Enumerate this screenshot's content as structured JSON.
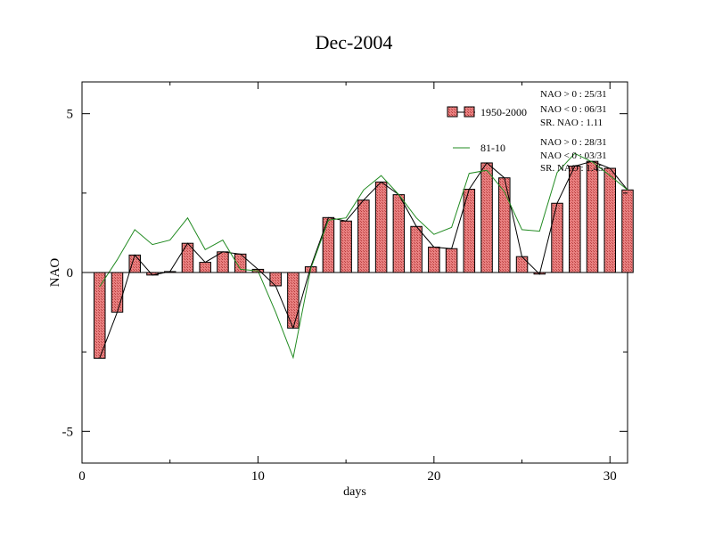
{
  "chart_data": {
    "type": "bar",
    "title": "Dec-2004",
    "xlabel": "days",
    "ylabel": "NAO",
    "xlim": [
      0,
      31
    ],
    "ylim": [
      -6,
      6
    ],
    "x_ticks": [
      0,
      10,
      20,
      30
    ],
    "x_tick_labels": [
      "0",
      "10",
      "20",
      "30"
    ],
    "y_ticks": [
      -5,
      0,
      5
    ],
    "y_tick_labels": [
      "-5",
      "0",
      "5"
    ],
    "grid": false,
    "legend_position": "top-right",
    "days": [
      1,
      2,
      3,
      4,
      5,
      6,
      7,
      8,
      9,
      10,
      11,
      12,
      13,
      14,
      15,
      16,
      17,
      18,
      19,
      20,
      21,
      22,
      23,
      24,
      25,
      26,
      27,
      28,
      29,
      30,
      31
    ],
    "series": [
      {
        "name": "1950-2000",
        "style": "bars with line",
        "color": "#e06666",
        "line_color": "#000000",
        "values": [
          -2.7,
          -1.25,
          0.55,
          -0.08,
          0.03,
          0.92,
          0.32,
          0.65,
          0.58,
          0.1,
          -0.42,
          -1.75,
          0.18,
          1.73,
          1.62,
          2.28,
          2.85,
          2.45,
          1.45,
          0.8,
          0.75,
          2.62,
          3.45,
          2.98,
          0.5,
          -0.05,
          2.18,
          3.35,
          3.5,
          3.28,
          2.6
        ]
      },
      {
        "name": "81-10",
        "style": "line",
        "color": "#228b22",
        "values": [
          -0.45,
          0.4,
          1.35,
          0.88,
          1.02,
          1.72,
          0.72,
          1.02,
          0.1,
          0.05,
          -1.25,
          -2.68,
          0.12,
          1.65,
          1.72,
          2.6,
          3.05,
          2.45,
          1.72,
          1.2,
          1.42,
          3.12,
          3.22,
          2.55,
          1.35,
          1.3,
          3.15,
          3.75,
          3.48,
          3.05,
          2.6
        ]
      }
    ],
    "annotations": {
      "clim_1950_2000": [
        "NAO > 0 : 25/31",
        "NAO < 0 : 06/31",
        "SR. NAO :  1.11"
      ],
      "clim_81_10": [
        "NAO > 0 : 28/31",
        "NAO < 0 : 03/31",
        "SR. NAO :  1.45"
      ]
    }
  }
}
